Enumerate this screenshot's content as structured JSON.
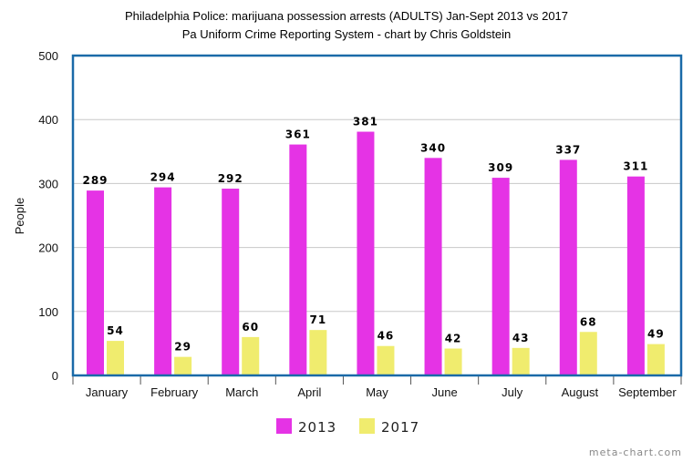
{
  "chart_data": {
    "type": "bar",
    "title": "Philadelphia Police: marijuana possession arrests (ADULTS) Jan-Sept 2013 vs 2017",
    "subtitle": "Pa Uniform Crime Reporting System - chart by Chris Goldstein",
    "xlabel": "",
    "ylabel": "People",
    "ylim": [
      0,
      500
    ],
    "yticks": [
      0,
      100,
      200,
      300,
      400,
      500
    ],
    "categories": [
      "January",
      "February",
      "March",
      "April",
      "May",
      "June",
      "July",
      "August",
      "September"
    ],
    "series": [
      {
        "name": "2013",
        "color": "#e533e5",
        "values": [
          289,
          294,
          292,
          361,
          381,
          340,
          309,
          337,
          311
        ]
      },
      {
        "name": "2017",
        "color": "#f0ec6e",
        "values": [
          54,
          29,
          60,
          71,
          46,
          42,
          43,
          68,
          49
        ]
      }
    ],
    "grid": true,
    "legend_position": "bottom",
    "frame_color": "#1a6aa8",
    "credit": "meta-chart.com"
  }
}
